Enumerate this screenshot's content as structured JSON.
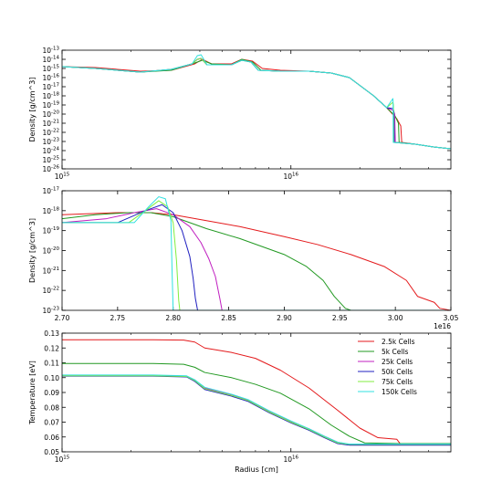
{
  "colors": {
    "2.5k Cells": "#e41a1c",
    "5k Cells": "#229922",
    "25k Cells": "#c020c0",
    "50k Cells": "#2020c0",
    "75k Cells": "#80ee40",
    "150k Cells": "#30e0e0"
  },
  "chart_data": [
    {
      "type": "line",
      "xscale": "log",
      "yscale": "log",
      "xlim": [
        1000000000000000.0,
        5e+16
      ],
      "ylim": [
        1e-26,
        1e-13
      ],
      "xticks": [
        {
          "v": 1000000000000000.0,
          "label": "10",
          "exp": "15"
        },
        {
          "v": 1e+16,
          "label": "10",
          "exp": "16"
        }
      ],
      "yticks": [
        {
          "v": -13,
          "label": "10",
          "exp": "-13"
        },
        {
          "v": -14,
          "label": "10",
          "exp": "-14"
        },
        {
          "v": -15,
          "label": "10",
          "exp": "-15"
        },
        {
          "v": -16,
          "label": "10",
          "exp": "-16"
        },
        {
          "v": -17,
          "label": "10",
          "exp": "-17"
        },
        {
          "v": -18,
          "label": "10",
          "exp": "-18"
        },
        {
          "v": -19,
          "label": "10",
          "exp": "-19"
        },
        {
          "v": -20,
          "label": "10",
          "exp": "-20"
        },
        {
          "v": -21,
          "label": "10",
          "exp": "-21"
        },
        {
          "v": -22,
          "label": "10",
          "exp": "-22"
        },
        {
          "v": -23,
          "label": "10",
          "exp": "-23"
        },
        {
          "v": -24,
          "label": "10",
          "exp": "-24"
        },
        {
          "v": -25,
          "label": "10",
          "exp": "-25"
        },
        {
          "v": -26,
          "label": "10",
          "exp": "-26"
        }
      ],
      "xlabel": "",
      "ylabel": "Density [g/cm^3]",
      "series": [
        {
          "name": "2.5k Cells",
          "x": [
            1000000000000000.0,
            1400000000000000.0,
            2200000000000000.0,
            3000000000000000.0,
            3800000000000000.0,
            4100000000000000.0,
            4500000000000000.0,
            5500000000000000.0,
            6100000000000000.0,
            6800000000000000.0,
            7500000000000000.0,
            9000000000000000.0,
            1.2e+16,
            1.5e+16,
            1.8e+16,
            2.3e+16,
            2.62e+16,
            2.9e+16,
            3.02e+16,
            3.05e+16,
            3.5e+16,
            4.2e+16,
            5e+16
          ],
          "y": [
            -14.8,
            -14.9,
            -15.3,
            -15.2,
            -14.5,
            -14.0,
            -14.5,
            -14.5,
            -14.0,
            -14.2,
            -15.0,
            -15.2,
            -15.3,
            -15.5,
            -16.0,
            -18.0,
            -19.3,
            -20.5,
            -21.3,
            -23.1,
            -23.3,
            -23.6,
            -23.8
          ]
        },
        {
          "name": "5k Cells",
          "x": [
            1000000000000000.0,
            1400000000000000.0,
            2200000000000000.0,
            3000000000000000.0,
            3800000000000000.0,
            4100000000000000.0,
            4500000000000000.0,
            5500000000000000.0,
            6100000000000000.0,
            6800000000000000.0,
            7400000000000000.0,
            9000000000000000.0,
            1.2e+16,
            1.5e+16,
            1.8e+16,
            2.3e+16,
            2.62e+16,
            2.85e+16,
            2.95e+16,
            2.97e+16,
            3.5e+16,
            4.2e+16,
            5e+16
          ],
          "y": [
            -14.8,
            -15.0,
            -15.4,
            -15.2,
            -14.4,
            -14.1,
            -14.5,
            -14.6,
            -14.0,
            -14.3,
            -15.2,
            -15.3,
            -15.3,
            -15.5,
            -16.0,
            -18.0,
            -19.3,
            -20.2,
            -21.0,
            -23.1,
            -23.3,
            -23.6,
            -23.8
          ]
        },
        {
          "name": "25k Cells",
          "x": [
            1000000000000000.0,
            1400000000000000.0,
            2200000000000000.0,
            3000000000000000.0,
            3700000000000000.0,
            3900000000000000.0,
            4050000000000000.0,
            4300000000000000.0,
            5500000000000000.0,
            6100000000000000.0,
            6700000000000000.0,
            7200000000000000.0,
            9000000000000000.0,
            1.2e+16,
            1.5e+16,
            1.8e+16,
            2.3e+16,
            2.62e+16,
            2.8e+16,
            2.84e+16,
            2.86e+16,
            3.5e+16,
            4.2e+16,
            5e+16
          ],
          "y": [
            -14.8,
            -15.0,
            -15.4,
            -15.1,
            -14.5,
            -14.0,
            -13.9,
            -14.6,
            -14.6,
            -14.1,
            -14.3,
            -15.2,
            -15.3,
            -15.3,
            -15.5,
            -16.0,
            -18.0,
            -19.3,
            -19.6,
            -20.0,
            -23.1,
            -23.3,
            -23.6,
            -23.8
          ]
        },
        {
          "name": "50k Cells",
          "x": [
            1000000000000000.0,
            1400000000000000.0,
            2200000000000000.0,
            3000000000000000.0,
            3700000000000000.0,
            3900000000000000.0,
            4050000000000000.0,
            4300000000000000.0,
            5500000000000000.0,
            6100000000000000.0,
            6700000000000000.0,
            7200000000000000.0,
            9000000000000000.0,
            1.2e+16,
            1.5e+16,
            1.8e+16,
            2.3e+16,
            2.62e+16,
            2.8e+16,
            2.82e+16,
            2.83e+16,
            3.5e+16,
            4.2e+16,
            5e+16
          ],
          "y": [
            -14.8,
            -15.0,
            -15.4,
            -15.1,
            -14.5,
            -14.0,
            -13.9,
            -14.6,
            -14.6,
            -14.1,
            -14.3,
            -15.2,
            -15.3,
            -15.3,
            -15.5,
            -16.0,
            -18.0,
            -19.3,
            -19.4,
            -19.8,
            -23.1,
            -23.3,
            -23.6,
            -23.8
          ]
        },
        {
          "name": "75k Cells",
          "x": [
            1000000000000000.0,
            1400000000000000.0,
            2200000000000000.0,
            3000000000000000.0,
            3700000000000000.0,
            3900000000000000.0,
            4050000000000000.0,
            4300000000000000.0,
            5500000000000000.0,
            6100000000000000.0,
            6700000000000000.0,
            7200000000000000.0,
            9000000000000000.0,
            1.2e+16,
            1.5e+16,
            1.8e+16,
            2.3e+16,
            2.62e+16,
            2.79e+16,
            2.805e+16,
            2.81e+16,
            3.5e+16,
            4.2e+16,
            5e+16
          ],
          "y": [
            -14.8,
            -15.0,
            -15.4,
            -15.1,
            -14.5,
            -14.0,
            -13.9,
            -14.6,
            -14.6,
            -14.1,
            -14.3,
            -15.2,
            -15.3,
            -15.3,
            -15.5,
            -16.0,
            -18.0,
            -19.3,
            -18.7,
            -19.0,
            -23.1,
            -23.3,
            -23.6,
            -23.8
          ]
        },
        {
          "name": "150k Cells",
          "x": [
            1000000000000000.0,
            1400000000000000.0,
            2200000000000000.0,
            3000000000000000.0,
            3700000000000000.0,
            3900000000000000.0,
            4050000000000000.0,
            4300000000000000.0,
            5500000000000000.0,
            6100000000000000.0,
            6700000000000000.0,
            7200000000000000.0,
            9000000000000000.0,
            1.2e+16,
            1.5e+16,
            1.8e+16,
            2.3e+16,
            2.62e+16,
            2.79e+16,
            2.795e+16,
            2.8e+16,
            3.5e+16,
            4.2e+16,
            5e+16
          ],
          "y": [
            -14.8,
            -15.0,
            -15.4,
            -15.1,
            -14.5,
            -13.6,
            -13.5,
            -14.6,
            -14.6,
            -14.1,
            -14.3,
            -15.2,
            -15.3,
            -15.3,
            -15.5,
            -16.0,
            -18.0,
            -19.3,
            -18.3,
            -18.8,
            -23.1,
            -23.3,
            -23.6,
            -23.8
          ]
        }
      ]
    },
    {
      "type": "line",
      "xscale": "linear",
      "yscale": "log",
      "xlim": [
        2.7,
        3.05
      ],
      "ylim": [
        1e-23,
        1e-17
      ],
      "xticks": [
        {
          "v": 2.7,
          "label": "2.70"
        },
        {
          "v": 2.75,
          "label": "2.75"
        },
        {
          "v": 2.8,
          "label": "2.80"
        },
        {
          "v": 2.85,
          "label": "2.85"
        },
        {
          "v": 2.9,
          "label": "2.90"
        },
        {
          "v": 2.95,
          "label": "2.95"
        },
        {
          "v": 3.0,
          "label": "3.00"
        },
        {
          "v": 3.05,
          "label": "3.05"
        }
      ],
      "yticks": [
        {
          "v": -17,
          "label": "10",
          "exp": "-17"
        },
        {
          "v": -18,
          "label": "10",
          "exp": "-18"
        },
        {
          "v": -19,
          "label": "10",
          "exp": "-19"
        },
        {
          "v": -20,
          "label": "10",
          "exp": "-20"
        },
        {
          "v": -21,
          "label": "10",
          "exp": "-21"
        },
        {
          "v": -22,
          "label": "10",
          "exp": "-22"
        },
        {
          "v": -23,
          "label": "10",
          "exp": "-23"
        }
      ],
      "offset_text": "1e16",
      "xlabel": "",
      "ylabel": "Density [g/cm^3]",
      "series": [
        {
          "name": "2.5k Cells",
          "x": [
            2.7,
            2.75,
            2.78,
            2.8,
            2.83,
            2.86,
            2.9,
            2.93,
            2.96,
            2.99,
            3.01,
            3.02,
            3.035,
            3.04,
            3.05
          ],
          "y": [
            -18.2,
            -18.1,
            -18.1,
            -18.2,
            -18.5,
            -18.8,
            -19.3,
            -19.7,
            -20.2,
            -20.8,
            -21.5,
            -22.3,
            -22.6,
            -22.9,
            -23.0
          ]
        },
        {
          "name": "5k Cells",
          "x": [
            2.7,
            2.73,
            2.76,
            2.78,
            2.8,
            2.83,
            2.86,
            2.9,
            2.92,
            2.935,
            2.945,
            2.955,
            2.96,
            3.05
          ],
          "y": [
            -18.4,
            -18.2,
            -18.1,
            -18.1,
            -18.3,
            -18.9,
            -19.4,
            -20.2,
            -20.8,
            -21.5,
            -22.3,
            -22.9,
            -23.0,
            -23.0
          ]
        },
        {
          "name": "25k Cells",
          "x": [
            2.7,
            2.74,
            2.765,
            2.785,
            2.8,
            2.815,
            2.825,
            2.832,
            2.838,
            2.842,
            2.844,
            3.05
          ],
          "y": [
            -18.6,
            -18.4,
            -18.1,
            -17.9,
            -18.2,
            -18.8,
            -19.6,
            -20.4,
            -21.3,
            -22.4,
            -23.0,
            -23.0
          ]
        },
        {
          "name": "50k Cells",
          "x": [
            2.7,
            2.75,
            2.775,
            2.79,
            2.8,
            2.808,
            2.815,
            2.818,
            2.82,
            2.822,
            3.05
          ],
          "y": [
            -18.6,
            -18.6,
            -18.0,
            -17.7,
            -18.1,
            -19.0,
            -20.3,
            -21.4,
            -22.4,
            -23.0,
            -23.0
          ]
        },
        {
          "name": "75k Cells",
          "x": [
            2.7,
            2.76,
            2.775,
            2.787,
            2.795,
            2.8,
            2.803,
            2.805,
            2.806,
            3.05
          ],
          "y": [
            -18.6,
            -18.6,
            -18.0,
            -17.5,
            -17.8,
            -18.6,
            -20.5,
            -22.5,
            -23.0,
            -23.0
          ]
        },
        {
          "name": "150k Cells",
          "x": [
            2.7,
            2.765,
            2.778,
            2.787,
            2.793,
            2.798,
            2.799,
            2.8,
            3.05
          ],
          "y": [
            -18.6,
            -18.6,
            -17.8,
            -17.3,
            -17.4,
            -18.5,
            -21.0,
            -23.0,
            -23.0
          ]
        }
      ]
    },
    {
      "type": "line",
      "xscale": "log",
      "yscale": "linear",
      "xlim": [
        1000000000000000.0,
        5e+16
      ],
      "ylim": [
        0.05,
        0.13
      ],
      "xticks": [
        {
          "v": 1000000000000000.0,
          "label": "10",
          "exp": "15"
        },
        {
          "v": 1e+16,
          "label": "10",
          "exp": "16"
        }
      ],
      "yticks": [
        {
          "v": 0.13,
          "label": "0.13"
        },
        {
          "v": 0.12,
          "label": "0.12"
        },
        {
          "v": 0.11,
          "label": "0.11"
        },
        {
          "v": 0.1,
          "label": "0.10"
        },
        {
          "v": 0.09,
          "label": "0.09"
        },
        {
          "v": 0.08,
          "label": "0.08"
        },
        {
          "v": 0.07,
          "label": "0.07"
        },
        {
          "v": 0.06,
          "label": "0.06"
        },
        {
          "v": 0.05,
          "label": "0.05"
        }
      ],
      "xlabel": "Radius [cm]",
      "ylabel": "Temperature [eV]",
      "legend": "top-right",
      "series": [
        {
          "name": "2.5k Cells",
          "x": [
            1000000000000000.0,
            2500000000000000.0,
            3400000000000000.0,
            3800000000000000.0,
            4200000000000000.0,
            5500000000000000.0,
            7000000000000000.0,
            9000000000000000.0,
            1.2e+16,
            1.6e+16,
            2e+16,
            2.4e+16,
            2.9e+16,
            3e+16,
            5e+16
          ],
          "y": [
            0.1255,
            0.1255,
            0.1253,
            0.124,
            0.12,
            0.117,
            0.113,
            0.105,
            0.093,
            0.078,
            0.066,
            0.0595,
            0.0585,
            0.0555,
            0.0555
          ]
        },
        {
          "name": "5k Cells",
          "x": [
            1000000000000000.0,
            2500000000000000.0,
            3400000000000000.0,
            3800000000000000.0,
            4200000000000000.0,
            5500000000000000.0,
            7000000000000000.0,
            9000000000000000.0,
            1.2e+16,
            1.5e+16,
            1.8e+16,
            2.1e+16,
            3e+16,
            5e+16
          ],
          "y": [
            0.1095,
            0.1095,
            0.109,
            0.107,
            0.1035,
            0.1,
            0.0955,
            0.0895,
            0.079,
            0.068,
            0.0605,
            0.056,
            0.0555,
            0.0555
          ]
        },
        {
          "name": "25k Cells",
          "x": [
            1000000000000000.0,
            2500000000000000.0,
            3500000000000000.0,
            3800000000000000.0,
            4200000000000000.0,
            5500000000000000.0,
            6500000000000000.0,
            8000000000000000.0,
            1e+16,
            1.2e+16,
            1.4e+16,
            1.6e+16,
            1.8e+16,
            5e+16
          ],
          "y": [
            0.1015,
            0.1015,
            0.101,
            0.0985,
            0.093,
            0.0885,
            0.085,
            0.0775,
            0.0705,
            0.0655,
            0.0605,
            0.0565,
            0.055,
            0.055
          ]
        },
        {
          "name": "50k Cells",
          "x": [
            1000000000000000.0,
            2500000000000000.0,
            3500000000000000.0,
            3800000000000000.0,
            4200000000000000.0,
            5500000000000000.0,
            6500000000000000.0,
            8000000000000000.0,
            1e+16,
            1.2e+16,
            1.4e+16,
            1.6e+16,
            1.8e+16,
            5e+16
          ],
          "y": [
            0.101,
            0.101,
            0.1005,
            0.0975,
            0.092,
            0.0875,
            0.084,
            0.0765,
            0.0695,
            0.0645,
            0.0595,
            0.0555,
            0.0545,
            0.0545
          ]
        },
        {
          "name": "75k Cells",
          "x": [
            1000000000000000.0,
            2500000000000000.0,
            3500000000000000.0,
            3800000000000000.0,
            4200000000000000.0,
            5500000000000000.0,
            6500000000000000.0,
            8000000000000000.0,
            1e+16,
            1.2e+16,
            1.4e+16,
            1.6e+16,
            1.8e+16,
            5e+16
          ],
          "y": [
            0.1012,
            0.1012,
            0.1008,
            0.098,
            0.0925,
            0.088,
            0.0845,
            0.077,
            0.07,
            0.065,
            0.06,
            0.056,
            0.055,
            0.055
          ]
        },
        {
          "name": "150k Cells",
          "x": [
            1000000000000000.0,
            2500000000000000.0,
            3500000000000000.0,
            3800000000000000.0,
            4200000000000000.0,
            5500000000000000.0,
            6500000000000000.0,
            8000000000000000.0,
            1e+16,
            1.2e+16,
            1.4e+16,
            1.6e+16,
            1.8e+16,
            5e+16
          ],
          "y": [
            0.1018,
            0.1018,
            0.1012,
            0.0985,
            0.0935,
            0.0888,
            0.0852,
            0.0778,
            0.0708,
            0.0655,
            0.0605,
            0.0565,
            0.0552,
            0.0552
          ]
        }
      ]
    }
  ]
}
